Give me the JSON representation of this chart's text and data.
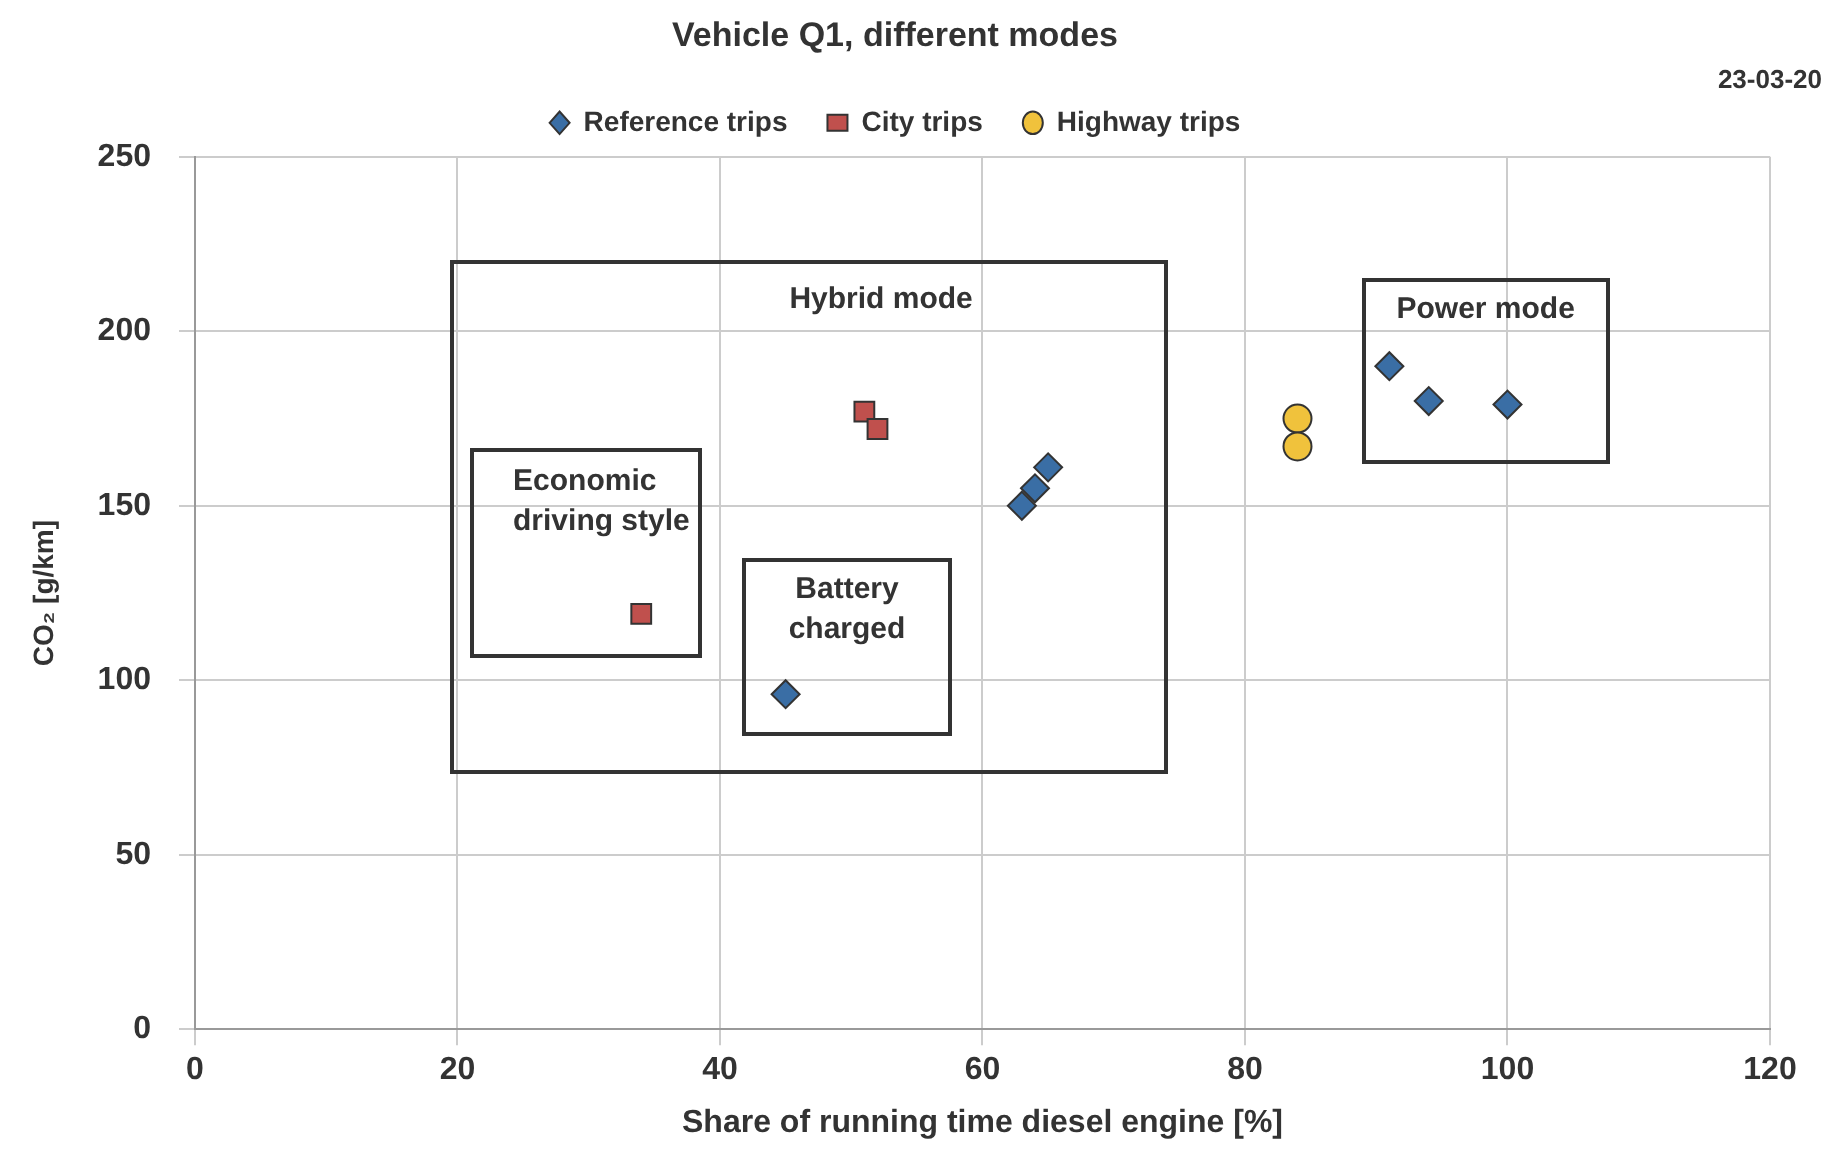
{
  "chart_data": {
    "type": "scatter",
    "title": "Vehicle Q1, different modes",
    "xlabel": "Share of running time diesel engine [%]",
    "ylabel": "CO₂ [g/km]",
    "xlim": [
      0,
      120
    ],
    "xticks": [
      0,
      20,
      40,
      60,
      80,
      100,
      120
    ],
    "ylim": [
      0,
      250
    ],
    "yticks": [
      0,
      50,
      100,
      150,
      200,
      250
    ],
    "grid": true,
    "legend": "top",
    "series": [
      {
        "name": "Reference trips",
        "color": "#3a6ea5",
        "marker": "diamond",
        "x": [
          45,
          63,
          64,
          65,
          91,
          94,
          100
        ],
        "values": [
          96,
          150,
          155,
          161,
          190,
          180,
          179
        ]
      },
      {
        "name": "City trips",
        "color": "#c0504d",
        "marker": "square",
        "x": [
          51,
          52,
          34
        ],
        "values": [
          177,
          172,
          119
        ]
      },
      {
        "name": "Highway trips",
        "color": "#f0c23c",
        "marker": "circle",
        "x": [
          84,
          84
        ],
        "values": [
          175,
          167
        ]
      }
    ],
    "annotations": [
      "Hybrid mode",
      "Power mode",
      "Economic driving style",
      "Battery charged",
      "23-03-20"
    ]
  }
}
